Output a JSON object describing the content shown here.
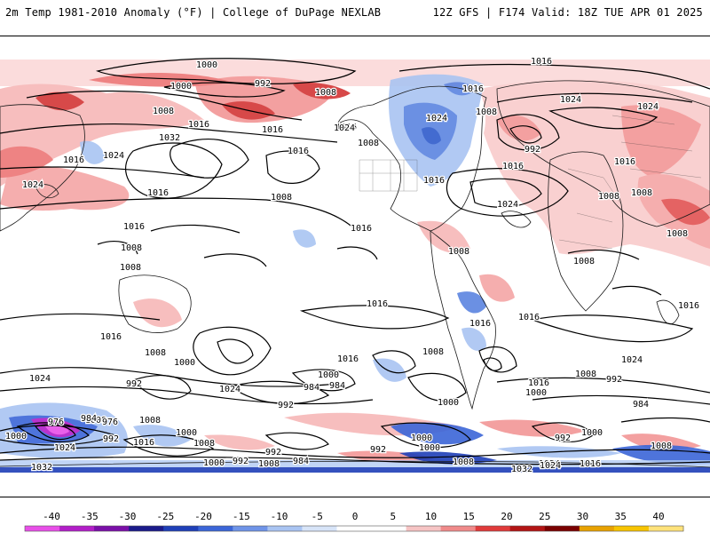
{
  "header": {
    "left": "2m Temp 1981-2010 Anomaly (°F) | College of DuPage NEXLAB",
    "right": "12Z GFS | F174 Valid: 18Z TUE APR 01 2025"
  },
  "colorbar": {
    "ticks": [
      "-40",
      "-35",
      "-30",
      "-25",
      "-20",
      "-15",
      "-10",
      "-5",
      "0",
      "5",
      "10",
      "15",
      "20",
      "25",
      "30",
      "35",
      "40"
    ],
    "colors": [
      "#e84fe8",
      "#b21ec8",
      "#7a0fa8",
      "#1a1a8a",
      "#1f3fb8",
      "#3b66d8",
      "#6f94e8",
      "#a9c4f2",
      "#d7e4f8",
      "#ffffff",
      "#ffffff",
      "#f6c4c4",
      "#f08a8a",
      "#e03a3a",
      "#b31414",
      "#7a0000",
      "#e8a200",
      "#f7c400",
      "#ffe27a"
    ]
  },
  "isobar_labels": [
    {
      "v": "1000"
    },
    {
      "v": "992"
    },
    {
      "v": "1000"
    },
    {
      "v": "1008"
    },
    {
      "v": "1008"
    },
    {
      "v": "1016"
    },
    {
      "v": "1016"
    },
    {
      "v": "1032"
    },
    {
      "v": "1024"
    },
    {
      "v": "1016"
    },
    {
      "v": "1016"
    },
    {
      "v": "1016"
    },
    {
      "v": "1024"
    },
    {
      "v": "1024"
    },
    {
      "v": "1016"
    },
    {
      "v": "1008"
    },
    {
      "v": "1016"
    },
    {
      "v": "1008"
    },
    {
      "v": "1016"
    },
    {
      "v": "1024"
    },
    {
      "v": "1016"
    },
    {
      "v": "1008"
    },
    {
      "v": "1016"
    },
    {
      "v": "1016"
    },
    {
      "v": "1008"
    },
    {
      "v": "1008"
    },
    {
      "v": "1024"
    },
    {
      "v": "1016"
    },
    {
      "v": "992"
    },
    {
      "v": "1024"
    },
    {
      "v": "1024"
    },
    {
      "v": "1016"
    },
    {
      "v": "1008"
    },
    {
      "v": "1008"
    },
    {
      "v": "1008"
    },
    {
      "v": "1008"
    },
    {
      "v": "1008"
    },
    {
      "v": "1016"
    },
    {
      "v": "1016"
    },
    {
      "v": "1016"
    },
    {
      "v": "1016"
    },
    {
      "v": "1016"
    },
    {
      "v": "1008"
    },
    {
      "v": "1000"
    },
    {
      "v": "1024"
    },
    {
      "v": "1008"
    },
    {
      "v": "1024"
    },
    {
      "v": "992"
    },
    {
      "v": "1000"
    },
    {
      "v": "984"
    },
    {
      "v": "992"
    },
    {
      "v": "1016"
    },
    {
      "v": "1008"
    },
    {
      "v": "1000"
    },
    {
      "v": "1016"
    },
    {
      "v": "1000"
    },
    {
      "v": "1024"
    },
    {
      "v": "1008"
    },
    {
      "v": "992"
    },
    {
      "v": "984"
    },
    {
      "v": "1000"
    },
    {
      "v": "984"
    },
    {
      "v": "992"
    },
    {
      "v": "1008"
    },
    {
      "v": "976"
    },
    {
      "v": "1000"
    },
    {
      "v": "1024"
    },
    {
      "v": "1016"
    },
    {
      "v": "984"
    },
    {
      "v": "976"
    },
    {
      "v": "1000"
    },
    {
      "v": "992"
    },
    {
      "v": "1000"
    },
    {
      "v": "1000"
    },
    {
      "v": "992"
    },
    {
      "v": "1008"
    },
    {
      "v": "1008"
    },
    {
      "v": "1024"
    },
    {
      "v": "1032"
    },
    {
      "v": "1008"
    },
    {
      "v": "1000"
    },
    {
      "v": "992"
    },
    {
      "v": "1008"
    },
    {
      "v": "984"
    },
    {
      "v": "992"
    },
    {
      "v": "1032"
    },
    {
      "v": "1024"
    },
    {
      "v": "1016"
    }
  ]
}
